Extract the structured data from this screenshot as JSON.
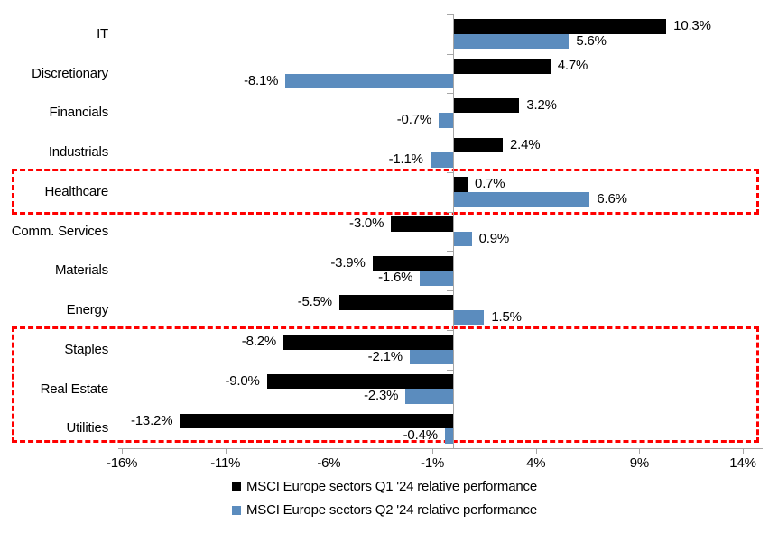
{
  "chart_data": {
    "type": "bar",
    "orientation": "horizontal",
    "title": "",
    "xlabel": "",
    "ylabel": "",
    "grid": false,
    "legend_position": "bottom-center",
    "categories": [
      "IT",
      "Discretionary",
      "Financials",
      "Industrials",
      "Healthcare",
      "Comm. Services",
      "Materials",
      "Energy",
      "Staples",
      "Real Estate",
      "Utilities"
    ],
    "series": [
      {
        "name": "MSCI Europe sectors Q1 '24 relative performance",
        "color": "#000000",
        "values": [
          10.3,
          4.7,
          3.2,
          2.4,
          0.7,
          -3.0,
          -3.9,
          -5.5,
          -8.2,
          -9.0,
          -13.2
        ]
      },
      {
        "name": "MSCI Europe sectors Q2 '24 relative performance",
        "color": "#5b8cbe",
        "values": [
          5.6,
          -8.1,
          -0.7,
          -1.1,
          6.6,
          0.9,
          -1.6,
          1.5,
          -2.1,
          -2.3,
          -0.4
        ]
      }
    ],
    "x_axis": {
      "tick_values": [
        -16,
        -11,
        -6,
        -1,
        4,
        9,
        14
      ],
      "tick_labels": [
        "-16%",
        "-11%",
        "-6%",
        "-1%",
        "4%",
        "9%",
        "14%"
      ],
      "min": -16.2,
      "max": 15
    },
    "value_label_format": "one-decimal-percent",
    "highlights": [
      {
        "name": "healthcare-highlight",
        "categories": [
          "Healthcare"
        ],
        "color": "#ff0000",
        "style": "dashed"
      },
      {
        "name": "defensives-highlight",
        "categories": [
          "Staples",
          "Real Estate",
          "Utilities"
        ],
        "color": "#ff0000",
        "style": "dashed"
      }
    ],
    "colors": {
      "axis": "#a6a6a6",
      "text": "#000000",
      "background": "#ffffff"
    }
  }
}
